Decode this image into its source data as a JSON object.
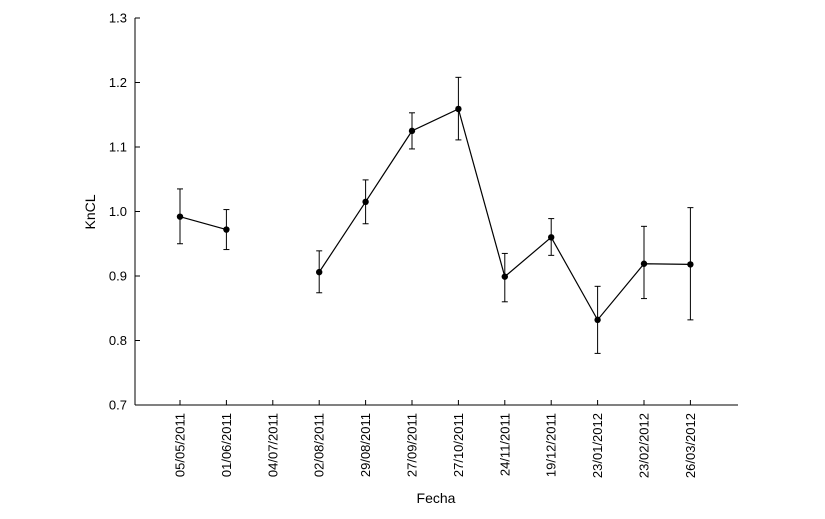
{
  "chart_data": {
    "type": "line",
    "xlabel": "Fecha",
    "ylabel": "KnCL",
    "ylim": [
      0.7,
      1.3
    ],
    "yticks": [
      "0.7",
      "0.8",
      "0.9",
      "1.0",
      "1.1",
      "1.2",
      "1.3"
    ],
    "categories": [
      "05/05/2011",
      "01/06/2011",
      "04/07/2011",
      "02/08/2011",
      "29/08/2011",
      "27/09/2011",
      "27/10/2011",
      "24/11/2011",
      "19/12/2011",
      "23/01/2012",
      "23/02/2012",
      "26/03/2012"
    ],
    "series": [
      {
        "values": [
          0.992,
          0.972,
          null,
          0.906,
          1.015,
          1.125,
          1.159,
          0.899,
          0.96,
          0.832,
          0.919,
          0.918
        ],
        "error_lower": [
          0.95,
          0.941,
          null,
          0.874,
          0.981,
          1.097,
          1.111,
          0.86,
          0.932,
          0.78,
          0.865,
          0.832
        ],
        "error_upper": [
          1.035,
          1.003,
          null,
          0.939,
          1.049,
          1.153,
          1.208,
          0.935,
          0.989,
          0.884,
          0.977,
          1.006
        ]
      }
    ],
    "grid": false,
    "legend": "none"
  }
}
